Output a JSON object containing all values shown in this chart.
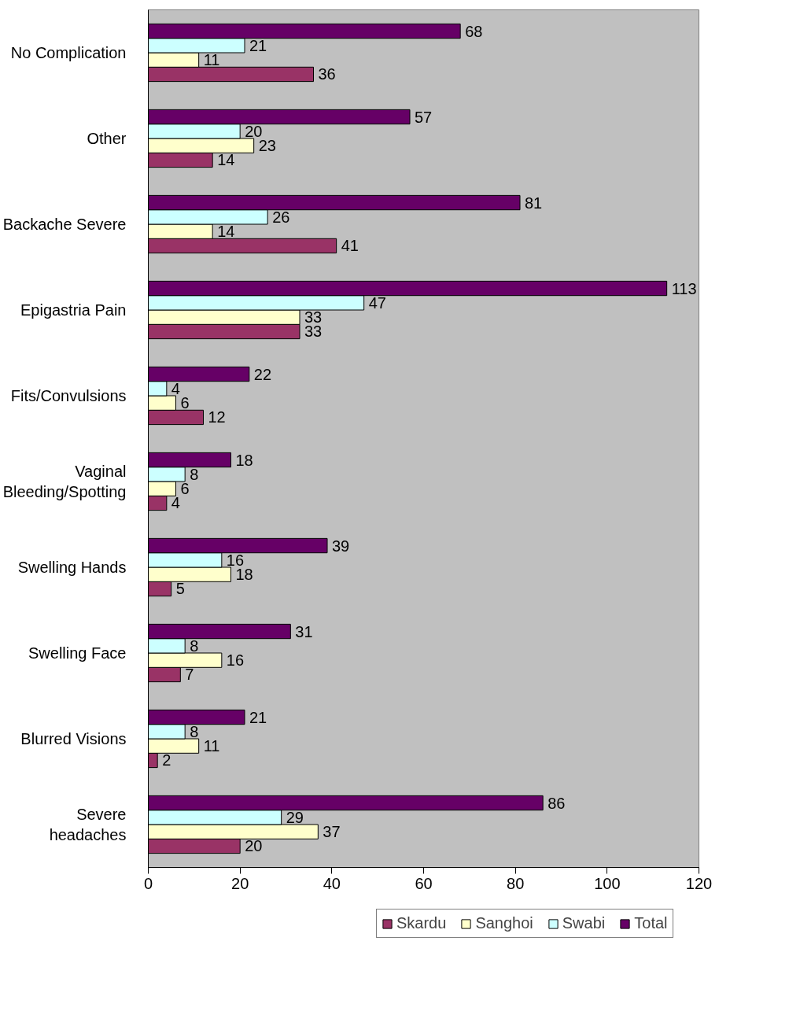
{
  "chart_data": {
    "type": "bar",
    "orientation": "horizontal",
    "categories": [
      "No Complication",
      "Other",
      "Backache Severe",
      "Epigastria Pain",
      "Fits/Convulsions",
      "Vaginal\nBleeding/Spotting",
      "Swelling Hands",
      "Swelling Face",
      "Blurred Visions",
      "Severe\nheadaches"
    ],
    "series": [
      {
        "name": "Skardu",
        "color": "#993366",
        "values": [
          36,
          14,
          41,
          33,
          12,
          4,
          5,
          7,
          2,
          20
        ]
      },
      {
        "name": "Sanghoi",
        "color": "#ffffcc",
        "values": [
          11,
          23,
          14,
          33,
          6,
          6,
          18,
          16,
          11,
          37
        ]
      },
      {
        "name": "Swabi",
        "color": "#ccffff",
        "values": [
          21,
          20,
          26,
          47,
          4,
          8,
          16,
          8,
          8,
          29
        ]
      },
      {
        "name": "Total",
        "color": "#660066",
        "values": [
          68,
          57,
          81,
          113,
          22,
          18,
          39,
          31,
          21,
          86
        ]
      }
    ],
    "xlim": [
      0,
      120
    ],
    "xticks": [
      0,
      20,
      40,
      60,
      80,
      100,
      120
    ],
    "data_labels": true,
    "grid": false,
    "legend": "bottom"
  }
}
